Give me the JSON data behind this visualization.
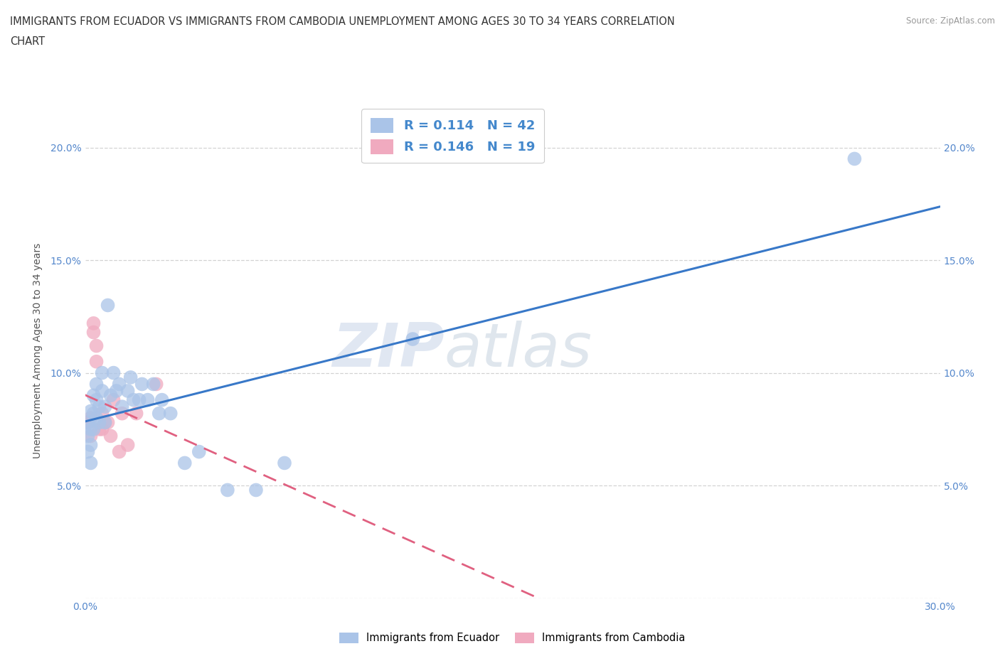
{
  "title_line1": "IMMIGRANTS FROM ECUADOR VS IMMIGRANTS FROM CAMBODIA UNEMPLOYMENT AMONG AGES 30 TO 34 YEARS CORRELATION",
  "title_line2": "CHART",
  "source": "Source: ZipAtlas.com",
  "ylabel_label": "Unemployment Among Ages 30 to 34 years",
  "xlim": [
    0.0,
    0.3
  ],
  "ylim": [
    0.0,
    0.22
  ],
  "xticks": [
    0.0,
    0.05,
    0.1,
    0.15,
    0.2,
    0.25,
    0.3
  ],
  "yticks": [
    0.0,
    0.05,
    0.1,
    0.15,
    0.2
  ],
  "ecuador_R": 0.114,
  "ecuador_N": 42,
  "cambodia_R": 0.146,
  "cambodia_N": 19,
  "ecuador_color": "#aac4e8",
  "cambodia_color": "#f0aabf",
  "ecuador_line_color": "#3878c8",
  "cambodia_line_color": "#e06080",
  "ecuador_x": [
    0.001,
    0.001,
    0.001,
    0.002,
    0.002,
    0.002,
    0.002,
    0.003,
    0.003,
    0.003,
    0.004,
    0.004,
    0.004,
    0.005,
    0.005,
    0.006,
    0.006,
    0.007,
    0.007,
    0.008,
    0.009,
    0.01,
    0.011,
    0.012,
    0.013,
    0.015,
    0.016,
    0.017,
    0.019,
    0.02,
    0.022,
    0.024,
    0.026,
    0.027,
    0.03,
    0.035,
    0.04,
    0.05,
    0.06,
    0.07,
    0.115,
    0.27
  ],
  "ecuador_y": [
    0.078,
    0.072,
    0.065,
    0.083,
    0.075,
    0.068,
    0.06,
    0.09,
    0.082,
    0.075,
    0.088,
    0.08,
    0.095,
    0.085,
    0.078,
    0.092,
    0.1,
    0.085,
    0.078,
    0.13,
    0.09,
    0.1,
    0.092,
    0.095,
    0.085,
    0.092,
    0.098,
    0.088,
    0.088,
    0.095,
    0.088,
    0.095,
    0.082,
    0.088,
    0.082,
    0.06,
    0.065,
    0.048,
    0.048,
    0.06,
    0.115,
    0.195
  ],
  "cambodia_x": [
    0.001,
    0.002,
    0.002,
    0.003,
    0.003,
    0.004,
    0.004,
    0.005,
    0.006,
    0.006,
    0.007,
    0.008,
    0.009,
    0.01,
    0.012,
    0.013,
    0.015,
    0.018,
    0.025
  ],
  "cambodia_y": [
    0.078,
    0.08,
    0.072,
    0.122,
    0.118,
    0.112,
    0.105,
    0.075,
    0.082,
    0.075,
    0.078,
    0.078,
    0.072,
    0.088,
    0.065,
    0.082,
    0.068,
    0.082,
    0.095
  ],
  "watermark_line1": "ZIP",
  "watermark_line2": "atlas",
  "background_color": "#ffffff",
  "grid_color": "#c8c8c8",
  "legend_ecuador_label": "Immigrants from Ecuador",
  "legend_cambodia_label": "Immigrants from Cambodia"
}
